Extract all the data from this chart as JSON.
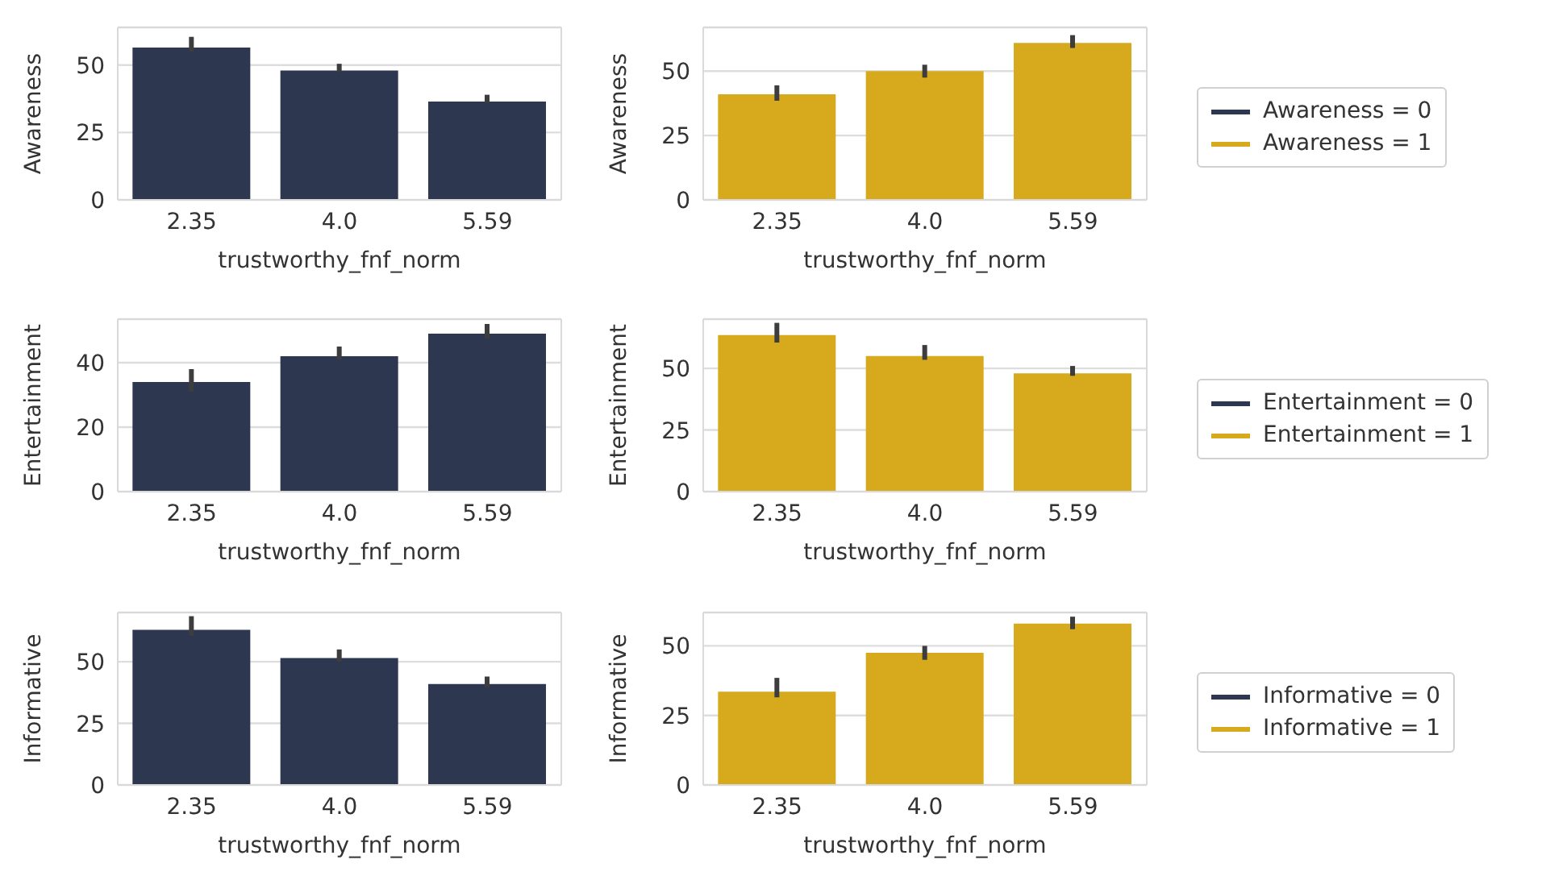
{
  "chart_data": [
    {
      "type": "bar",
      "categories": [
        "2.35",
        "4.0",
        "5.59"
      ],
      "xlabel": "trustworthy_fnf_norm",
      "ylabel": "Awareness",
      "ylim": [
        0,
        64
      ],
      "yticks": [
        0,
        25,
        50
      ],
      "grid": "y",
      "legend": false,
      "series": [
        {
          "color": "#2e3750",
          "values": [
            56.5,
            48,
            36.5
          ],
          "errors": [
            [
              55,
              60.5
            ],
            [
              47.5,
              50.5
            ],
            [
              36,
              39
            ]
          ]
        }
      ]
    },
    {
      "type": "bar",
      "categories": [
        "2.35",
        "4.0",
        "5.59"
      ],
      "xlabel": "trustworthy_fnf_norm",
      "ylabel": "Awareness",
      "ylim": [
        0,
        67
      ],
      "yticks": [
        0,
        25,
        50
      ],
      "grid": "y",
      "legend": "right",
      "series": [
        {
          "name": "Awareness = 0",
          "color": "#2e3750",
          "values": [
            null,
            null,
            null
          ]
        },
        {
          "name": "Awareness = 1",
          "color": "#d6aa1c",
          "values": [
            41,
            50,
            61
          ],
          "errors": [
            [
              38.5,
              44.5
            ],
            [
              47.5,
              52.5
            ],
            [
              59,
              64
            ]
          ]
        }
      ]
    },
    {
      "type": "bar",
      "categories": [
        "2.35",
        "4.0",
        "5.59"
      ],
      "xlabel": "trustworthy_fnf_norm",
      "ylabel": "Entertainment",
      "ylim": [
        0,
        53.5
      ],
      "yticks": [
        0,
        20,
        40
      ],
      "grid": "y",
      "legend": false,
      "series": [
        {
          "color": "#2e3750",
          "values": [
            34,
            42,
            49
          ],
          "errors": [
            [
              31,
              38
            ],
            [
              41,
              45
            ],
            [
              47.5,
              52
            ]
          ]
        }
      ]
    },
    {
      "type": "bar",
      "categories": [
        "2.35",
        "4.0",
        "5.59"
      ],
      "xlabel": "trustworthy_fnf_norm",
      "ylabel": "Entertainment",
      "ylim": [
        0,
        70
      ],
      "yticks": [
        0,
        25,
        50
      ],
      "grid": "y",
      "legend": "right",
      "series": [
        {
          "name": "Entertainment = 0",
          "color": "#2e3750",
          "values": [
            null,
            null,
            null
          ]
        },
        {
          "name": "Entertainment = 1",
          "color": "#d6aa1c",
          "values": [
            63.5,
            55,
            48
          ],
          "errors": [
            [
              60.5,
              68.5
            ],
            [
              53.5,
              59.5
            ],
            [
              47,
              51
            ]
          ]
        }
      ]
    },
    {
      "type": "bar",
      "categories": [
        "2.35",
        "4.0",
        "5.59"
      ],
      "xlabel": "trustworthy_fnf_norm",
      "ylabel": "Informative",
      "ylim": [
        0,
        70
      ],
      "yticks": [
        0,
        25,
        50
      ],
      "grid": "y",
      "legend": false,
      "series": [
        {
          "color": "#2e3750",
          "values": [
            63,
            51.5,
            41
          ],
          "errors": [
            [
              60.5,
              68.5
            ],
            [
              50,
              55
            ],
            [
              39.5,
              44
            ]
          ]
        }
      ]
    },
    {
      "type": "bar",
      "categories": [
        "2.35",
        "4.0",
        "5.59"
      ],
      "xlabel": "trustworthy_fnf_norm",
      "ylabel": "Informative",
      "ylim": [
        0,
        62
      ],
      "yticks": [
        0,
        25,
        50
      ],
      "grid": "y",
      "legend": "right",
      "series": [
        {
          "name": "Informative = 0",
          "color": "#2e3750",
          "values": [
            null,
            null,
            null
          ]
        },
        {
          "name": "Informative = 1",
          "color": "#d6aa1c",
          "values": [
            33.5,
            47.5,
            58
          ],
          "errors": [
            [
              31.5,
              38.5
            ],
            [
              45,
              50
            ],
            [
              56,
              60.5
            ]
          ]
        }
      ]
    }
  ]
}
